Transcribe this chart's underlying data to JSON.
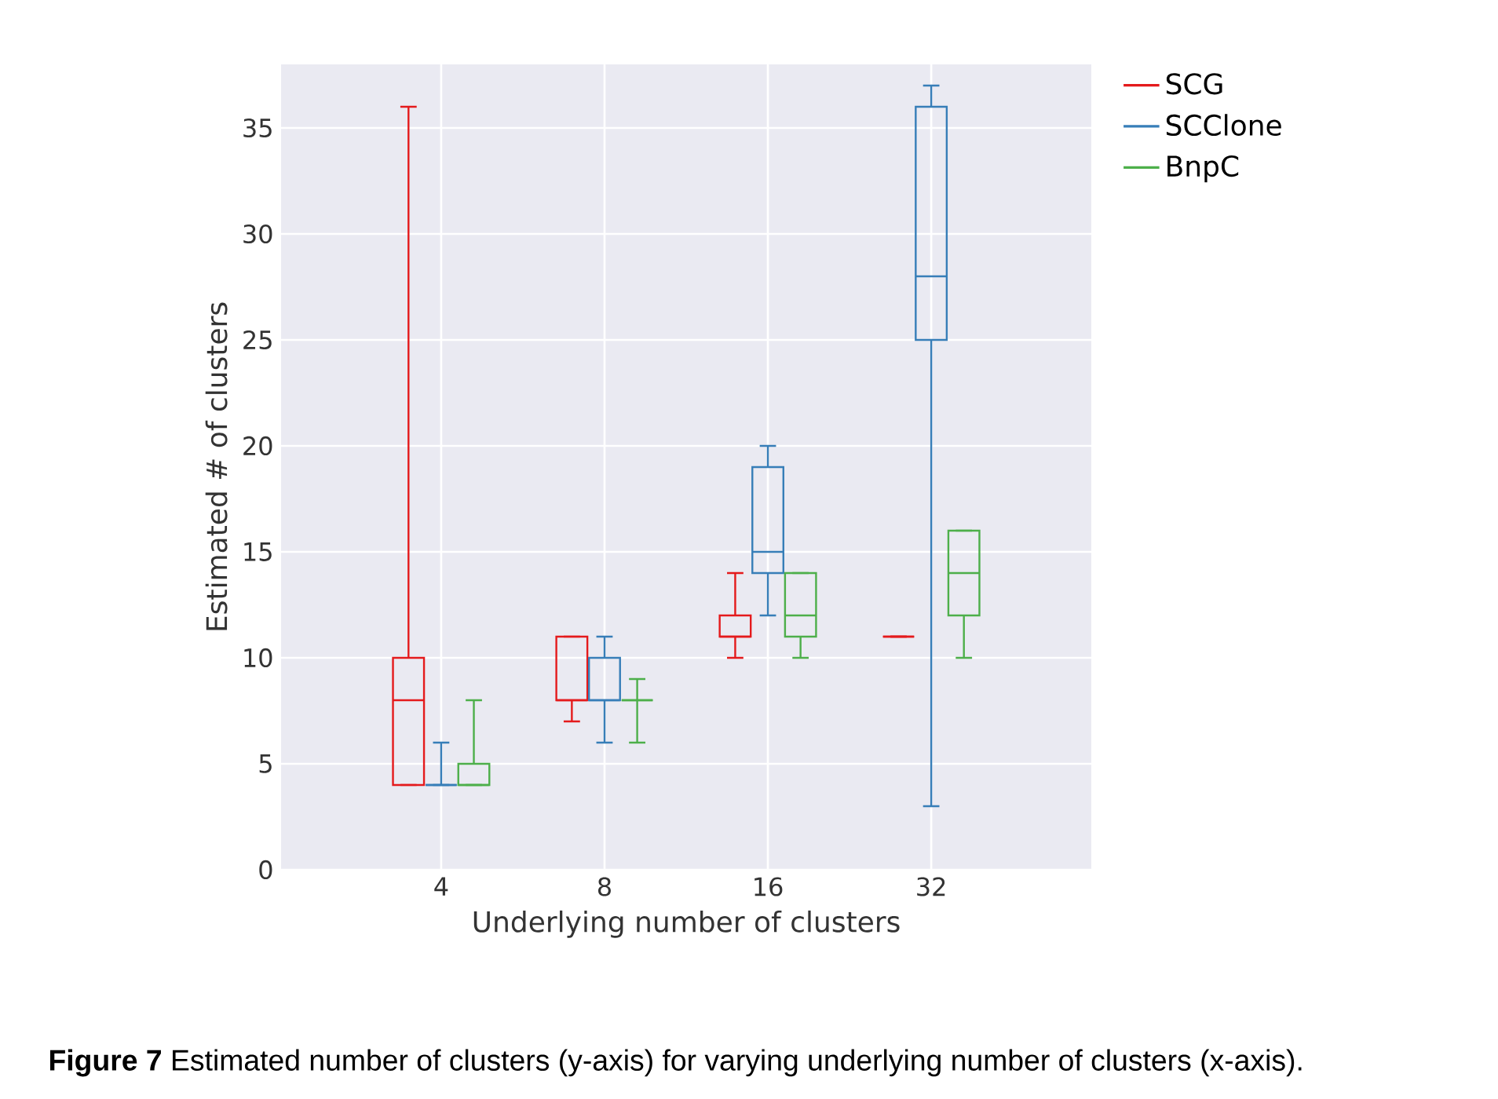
{
  "chart_data": {
    "type": "box",
    "xlabel": "Underlying number of clusters",
    "ylabel": "Estimated # of clusters",
    "categories": [
      "4",
      "8",
      "16",
      "32"
    ],
    "ylim": [
      0,
      38
    ],
    "yticks": [
      0,
      5,
      10,
      15,
      20,
      25,
      30,
      35
    ],
    "grid": true,
    "legend": "top right",
    "series": [
      {
        "name": "SCG",
        "color": "#e41a1c",
        "boxes": [
          {
            "low": 4,
            "q1": 4,
            "median": 8,
            "q3": 10,
            "high": 36
          },
          {
            "low": 7,
            "q1": 8,
            "median": 8,
            "q3": 11,
            "high": 11
          },
          {
            "low": 10,
            "q1": 11,
            "median": 11,
            "q3": 12,
            "high": 14
          },
          {
            "low": 11,
            "q1": 11,
            "median": 11,
            "q3": 11,
            "high": 11
          }
        ]
      },
      {
        "name": "SCClone",
        "color": "#377eb8",
        "boxes": [
          {
            "low": 4,
            "q1": 4,
            "median": 4,
            "q3": 4,
            "high": 6
          },
          {
            "low": 6,
            "q1": 8,
            "median": 8,
            "q3": 10,
            "high": 11
          },
          {
            "low": 12,
            "q1": 14,
            "median": 15,
            "q3": 19,
            "high": 20
          },
          {
            "low": 3,
            "q1": 25,
            "median": 28,
            "q3": 36,
            "high": 37
          }
        ]
      },
      {
        "name": "BnpC",
        "color": "#4daf4a",
        "boxes": [
          {
            "low": 4,
            "q1": 4,
            "median": 4,
            "q3": 5,
            "high": 8
          },
          {
            "low": 6,
            "q1": 8,
            "median": 8,
            "q3": 8,
            "high": 9
          },
          {
            "low": 10,
            "q1": 11,
            "median": 12,
            "q3": 14,
            "high": 14
          },
          {
            "low": 10,
            "q1": 12,
            "median": 14,
            "q3": 16,
            "high": 16
          }
        ]
      }
    ],
    "annotations": [
      "**Figure 7** Estimated number of clusters (y-axis) for varying underlying number of clusters (x-axis)."
    ]
  }
}
